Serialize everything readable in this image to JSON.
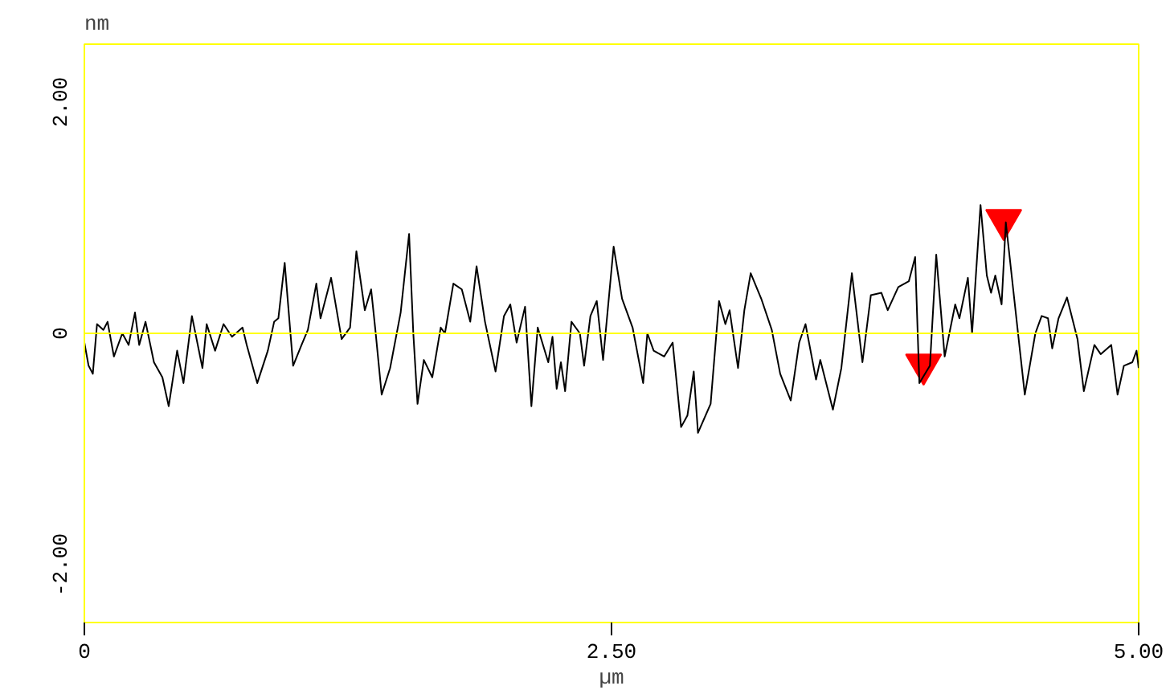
{
  "chart_data": {
    "type": "line",
    "xlabel": "µm",
    "ylabel": "nm",
    "xlim": [
      0,
      5
    ],
    "ylim": [
      -2.5,
      2.5
    ],
    "xticks": [
      0,
      {
        "value": 2.5,
        "label": "2.50"
      },
      {
        "value": 5,
        "label": "5.00"
      }
    ],
    "yticks": [
      {
        "value": -2,
        "label": "-2.00"
      },
      0,
      {
        "value": 2,
        "label": "2.00"
      }
    ],
    "grid": false,
    "marker": "none",
    "line_style": "solid",
    "ref_lines": [
      {
        "axis": "y",
        "value": 0,
        "color": "#ffff00"
      }
    ],
    "series": [
      {
        "color": "#000000",
        "x": [
          0.0,
          0.02,
          0.04,
          0.06,
          0.09,
          0.11,
          0.14,
          0.18,
          0.21,
          0.24,
          0.26,
          0.29,
          0.33,
          0.37,
          0.4,
          0.44,
          0.47,
          0.51,
          0.56,
          0.58,
          0.62,
          0.66,
          0.7,
          0.75,
          0.77,
          0.82,
          0.87,
          0.9,
          0.92,
          0.95,
          0.99,
          1.03,
          1.06,
          1.1,
          1.12,
          1.17,
          1.22,
          1.26,
          1.29,
          1.33,
          1.36,
          1.38,
          1.41,
          1.45,
          1.5,
          1.54,
          1.56,
          1.58,
          1.61,
          1.65,
          1.69,
          1.71,
          1.75,
          1.79,
          1.83,
          1.86,
          1.9,
          1.95,
          1.99,
          2.02,
          2.05,
          2.09,
          2.12,
          2.15,
          2.2,
          2.22,
          2.24,
          2.26,
          2.28,
          2.31,
          2.35,
          2.37,
          2.4,
          2.43,
          2.46,
          2.51,
          2.55,
          2.6,
          2.65,
          2.67,
          2.7,
          2.75,
          2.79,
          2.83,
          2.86,
          2.89,
          2.91,
          2.97,
          3.01,
          3.04,
          3.06,
          3.1,
          3.13,
          3.16,
          3.21,
          3.26,
          3.3,
          3.35,
          3.39,
          3.42,
          3.47,
          3.49,
          3.55,
          3.59,
          3.64,
          3.69,
          3.73,
          3.78,
          3.81,
          3.86,
          3.91,
          3.94,
          3.96,
          4.01,
          4.04,
          4.08,
          4.13,
          4.15,
          4.19,
          4.21,
          4.25,
          4.28,
          4.3,
          4.32,
          4.35,
          4.37,
          4.46,
          4.51,
          4.54,
          4.57,
          4.59,
          4.62,
          4.66,
          4.71,
          4.74,
          4.79,
          4.82,
          4.87,
          4.9,
          4.93,
          4.97,
          4.99,
          5.0
        ],
        "values": [
          -0.08,
          -0.28,
          -0.35,
          0.08,
          0.03,
          0.1,
          -0.2,
          0.0,
          -0.1,
          0.18,
          -0.1,
          0.1,
          -0.25,
          -0.38,
          -0.63,
          -0.15,
          -0.43,
          0.15,
          -0.3,
          0.08,
          -0.15,
          0.08,
          -0.03,
          0.05,
          -0.1,
          -0.43,
          -0.15,
          0.1,
          0.13,
          0.61,
          -0.28,
          -0.1,
          0.03,
          0.43,
          0.13,
          0.48,
          -0.05,
          0.05,
          0.71,
          0.2,
          0.38,
          0.03,
          -0.53,
          -0.3,
          0.18,
          0.86,
          0.0,
          -0.61,
          -0.23,
          -0.38,
          0.05,
          0.0,
          0.43,
          0.38,
          0.1,
          0.58,
          0.1,
          -0.33,
          0.15,
          0.25,
          -0.08,
          0.23,
          -0.63,
          0.05,
          -0.25,
          -0.03,
          -0.48,
          -0.25,
          -0.5,
          0.1,
          0.0,
          -0.28,
          0.15,
          0.28,
          -0.23,
          0.75,
          0.3,
          0.05,
          -0.43,
          0.0,
          -0.15,
          -0.2,
          -0.08,
          -0.81,
          -0.71,
          -0.33,
          -0.86,
          -0.61,
          0.28,
          0.08,
          0.2,
          -0.3,
          0.2,
          0.52,
          0.3,
          0.03,
          -0.35,
          -0.58,
          -0.08,
          0.08,
          -0.4,
          -0.23,
          -0.66,
          -0.3,
          0.52,
          -0.25,
          0.33,
          0.35,
          0.2,
          0.4,
          0.45,
          0.66,
          -0.43,
          -0.28,
          0.68,
          -0.2,
          0.25,
          0.13,
          0.48,
          0.0,
          1.11,
          0.5,
          0.35,
          0.5,
          0.25,
          0.96,
          -0.53,
          0.0,
          0.15,
          0.13,
          -0.13,
          0.13,
          0.31,
          -0.05,
          -0.5,
          -0.1,
          -0.18,
          -0.1,
          -0.53,
          -0.28,
          -0.25,
          -0.15,
          -0.3
        ]
      },
      {
        "type": "scatter",
        "marker": "triangle",
        "color": "#ff0000",
        "x": [
          3.98,
          4.36
        ],
        "values": [
          -0.27,
          0.98
        ]
      }
    ]
  }
}
